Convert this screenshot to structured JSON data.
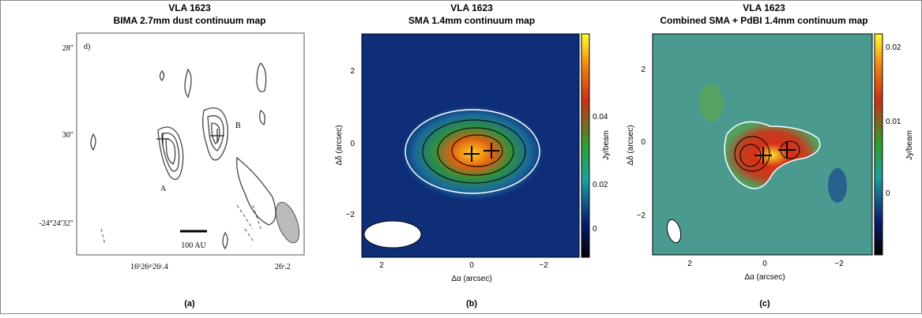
{
  "panels": [
    {
      "title": [
        "VLA 1623",
        "BIMA 2.7mm dust continuum map"
      ],
      "label": "d)",
      "sources": [
        "A",
        "B"
      ],
      "scale": "100 AU",
      "yticks": [
        "28″",
        "30″",
        "-24°24′32″"
      ],
      "xticks": [
        "16ʰ26ᵐ26ˢ.4",
        "26ˢ.2"
      ],
      "caption": "(a)"
    },
    {
      "title": [
        "VLA 1623",
        "SMA 1.4mm continuum map"
      ],
      "xlabel": "Δα (arcsec)",
      "ylabel": "Δδ (arcsec)",
      "xticks": [
        "2",
        "0",
        "−2"
      ],
      "yticks": [
        "2",
        "0",
        "−2"
      ],
      "cbar_ticks": [
        "0.04",
        "0.02",
        "0"
      ],
      "cbar_label": "Jy/beam",
      "caption": "(b)"
    },
    {
      "title": [
        "VLA 1623",
        "Combined SMA + PdBI 1.4mm continuum map"
      ],
      "xlabel": "Δα (arcsec)",
      "ylabel": "Δδ (arcsec)",
      "xticks": [
        "2",
        "0",
        "−2"
      ],
      "yticks": [
        "2",
        "0",
        "−2"
      ],
      "cbar_ticks": [
        "0.02",
        "0.01",
        "0"
      ],
      "cbar_label": "Jy/beam",
      "caption": "(c)"
    }
  ]
}
